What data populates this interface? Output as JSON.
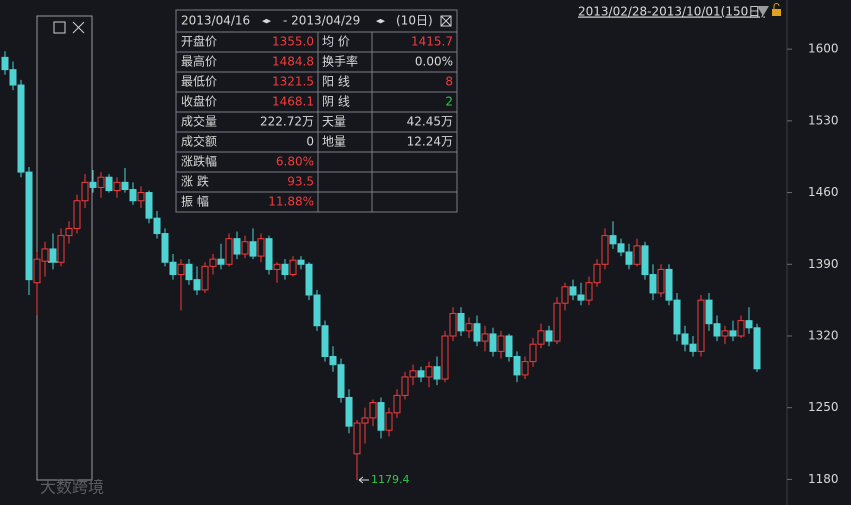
{
  "chart_data": {
    "type": "candlestick",
    "range_label": "2013/02/28-2013/10/01(150日)",
    "up_color": "#f23c3c",
    "down_color": "#4fd2d2",
    "ylim": [
      1155,
      1648
    ],
    "yticks": [
      1180,
      1250,
      1320,
      1390,
      1460,
      1530,
      1600
    ],
    "candles": [
      [
        1592,
        1598,
        1575,
        1580
      ],
      [
        1580,
        1588,
        1560,
        1565
      ],
      [
        1565,
        1570,
        1475,
        1480
      ],
      [
        1480,
        1485,
        1360,
        1375
      ],
      [
        1372,
        1402,
        1340,
        1395
      ],
      [
        1393,
        1412,
        1378,
        1405
      ],
      [
        1405,
        1420,
        1385,
        1392
      ],
      [
        1392,
        1425,
        1388,
        1418
      ],
      [
        1418,
        1432,
        1410,
        1425
      ],
      [
        1425,
        1458,
        1420,
        1452
      ],
      [
        1452,
        1478,
        1445,
        1470
      ],
      [
        1470,
        1482,
        1460,
        1465
      ],
      [
        1465,
        1480,
        1455,
        1475
      ],
      [
        1475,
        1478,
        1460,
        1462
      ],
      [
        1462,
        1475,
        1455,
        1470
      ],
      [
        1470,
        1484,
        1460,
        1463
      ],
      [
        1463,
        1470,
        1448,
        1452
      ],
      [
        1452,
        1466,
        1445,
        1460
      ],
      [
        1460,
        1462,
        1430,
        1435
      ],
      [
        1435,
        1442,
        1415,
        1420
      ],
      [
        1420,
        1425,
        1388,
        1392
      ],
      [
        1392,
        1400,
        1375,
        1380
      ],
      [
        1380,
        1395,
        1345,
        1390
      ],
      [
        1390,
        1395,
        1370,
        1375
      ],
      [
        1375,
        1388,
        1360,
        1365
      ],
      [
        1365,
        1392,
        1362,
        1388
      ],
      [
        1388,
        1400,
        1380,
        1395
      ],
      [
        1395,
        1410,
        1385,
        1390
      ],
      [
        1390,
        1420,
        1388,
        1415
      ],
      [
        1415,
        1422,
        1395,
        1400
      ],
      [
        1400,
        1418,
        1396,
        1412
      ],
      [
        1412,
        1425,
        1395,
        1398
      ],
      [
        1398,
        1420,
        1392,
        1415
      ],
      [
        1415,
        1418,
        1380,
        1385
      ],
      [
        1385,
        1392,
        1372,
        1390
      ],
      [
        1390,
        1395,
        1375,
        1380
      ],
      [
        1380,
        1398,
        1378,
        1394
      ],
      [
        1394,
        1398,
        1385,
        1390
      ],
      [
        1390,
        1392,
        1355,
        1360
      ],
      [
        1360,
        1365,
        1325,
        1330
      ],
      [
        1330,
        1335,
        1295,
        1300
      ],
      [
        1300,
        1310,
        1285,
        1292
      ],
      [
        1292,
        1298,
        1255,
        1260
      ],
      [
        1260,
        1268,
        1225,
        1232
      ],
      [
        1205,
        1238,
        1179.4,
        1235
      ],
      [
        1235,
        1250,
        1215,
        1240
      ],
      [
        1240,
        1258,
        1232,
        1255
      ],
      [
        1255,
        1260,
        1220,
        1228
      ],
      [
        1228,
        1250,
        1222,
        1245
      ],
      [
        1245,
        1268,
        1240,
        1262
      ],
      [
        1262,
        1285,
        1258,
        1280
      ],
      [
        1280,
        1292,
        1272,
        1286
      ],
      [
        1286,
        1290,
        1275,
        1280
      ],
      [
        1280,
        1295,
        1270,
        1290
      ],
      [
        1290,
        1300,
        1272,
        1278
      ],
      [
        1278,
        1325,
        1275,
        1320
      ],
      [
        1320,
        1348,
        1315,
        1342
      ],
      [
        1342,
        1348,
        1320,
        1325
      ],
      [
        1325,
        1338,
        1318,
        1332
      ],
      [
        1332,
        1340,
        1310,
        1315
      ],
      [
        1315,
        1330,
        1305,
        1322
      ],
      [
        1322,
        1328,
        1300,
        1305
      ],
      [
        1305,
        1325,
        1298,
        1320
      ],
      [
        1320,
        1322,
        1295,
        1300
      ],
      [
        1300,
        1305,
        1275,
        1282
      ],
      [
        1282,
        1300,
        1278,
        1295
      ],
      [
        1295,
        1318,
        1290,
        1312
      ],
      [
        1312,
        1332,
        1308,
        1325
      ],
      [
        1325,
        1330,
        1310,
        1315
      ],
      [
        1315,
        1358,
        1312,
        1352
      ],
      [
        1352,
        1372,
        1345,
        1368
      ],
      [
        1368,
        1375,
        1355,
        1360
      ],
      [
        1360,
        1372,
        1350,
        1355
      ],
      [
        1355,
        1378,
        1350,
        1372
      ],
      [
        1372,
        1395,
        1368,
        1390
      ],
      [
        1390,
        1425,
        1385,
        1418
      ],
      [
        1418,
        1432,
        1405,
        1410
      ],
      [
        1410,
        1415,
        1398,
        1402
      ],
      [
        1402,
        1410,
        1385,
        1390
      ],
      [
        1390,
        1415,
        1388,
        1408
      ],
      [
        1408,
        1412,
        1375,
        1380
      ],
      [
        1380,
        1390,
        1355,
        1362
      ],
      [
        1362,
        1390,
        1358,
        1385
      ],
      [
        1385,
        1390,
        1350,
        1355
      ],
      [
        1355,
        1362,
        1315,
        1322
      ],
      [
        1322,
        1330,
        1305,
        1312
      ],
      [
        1312,
        1320,
        1300,
        1305
      ],
      [
        1305,
        1360,
        1300,
        1355
      ],
      [
        1355,
        1362,
        1325,
        1332
      ],
      [
        1332,
        1340,
        1315,
        1320
      ],
      [
        1320,
        1330,
        1312,
        1325
      ],
      [
        1325,
        1335,
        1315,
        1320
      ],
      [
        1320,
        1340,
        1318,
        1335
      ],
      [
        1335,
        1348,
        1322,
        1328
      ],
      [
        1328,
        1332,
        1285,
        1288
      ]
    ],
    "low_annotation_index": 44
  },
  "panel": {
    "start": "2013/04/16",
    "end": "- 2013/04/29",
    "days": "(10日)",
    "rows": [
      [
        {
          "text": "开盘价",
          "color": "#d8d8d8"
        },
        {
          "text": "1355.0",
          "color": "#f23c3c"
        },
        {
          "text": "均 价",
          "color": "#d8d8d8"
        },
        {
          "text": "1415.7",
          "color": "#f23c3c"
        }
      ],
      [
        {
          "text": "最高价",
          "color": "#d8d8d8"
        },
        {
          "text": "1484.8",
          "color": "#f23c3c"
        },
        {
          "text": "换手率",
          "color": "#d8d8d8"
        },
        {
          "text": "0.00%",
          "color": "#d8d8d8"
        }
      ],
      [
        {
          "text": "最低价",
          "color": "#d8d8d8"
        },
        {
          "text": "1321.5",
          "color": "#f23c3c"
        },
        {
          "text": "阳 线",
          "color": "#d8d8d8"
        },
        {
          "text": "8",
          "color": "#f23c3c"
        }
      ],
      [
        {
          "text": "收盘价",
          "color": "#d8d8d8"
        },
        {
          "text": "1468.1",
          "color": "#f23c3c"
        },
        {
          "text": "阴 线",
          "color": "#d8d8d8"
        },
        {
          "text": "2",
          "color": "#2ec84a"
        }
      ],
      [
        {
          "text": "成交量",
          "color": "#d8d8d8"
        },
        {
          "text": "222.72万",
          "color": "#d8d8d8"
        },
        {
          "text": "天量",
          "color": "#d8d8d8"
        },
        {
          "text": "42.45万",
          "color": "#d8d8d8"
        }
      ],
      [
        {
          "text": "成交额",
          "color": "#d8d8d8"
        },
        {
          "text": "0",
          "color": "#d8d8d8"
        },
        {
          "text": "地量",
          "color": "#d8d8d8"
        },
        {
          "text": "12.24万",
          "color": "#d8d8d8"
        }
      ],
      [
        {
          "text": "涨跌幅",
          "color": "#d8d8d8"
        },
        {
          "text": "6.80%",
          "color": "#f23c3c"
        }
      ],
      [
        {
          "text": "涨 跌",
          "color": "#d8d8d8"
        },
        {
          "text": "93.5",
          "color": "#f23c3c"
        }
      ],
      [
        {
          "text": "振 幅",
          "color": "#d8d8d8"
        },
        {
          "text": "11.88%",
          "color": "#f23c3c"
        }
      ]
    ]
  },
  "watermark": "大数跨境"
}
